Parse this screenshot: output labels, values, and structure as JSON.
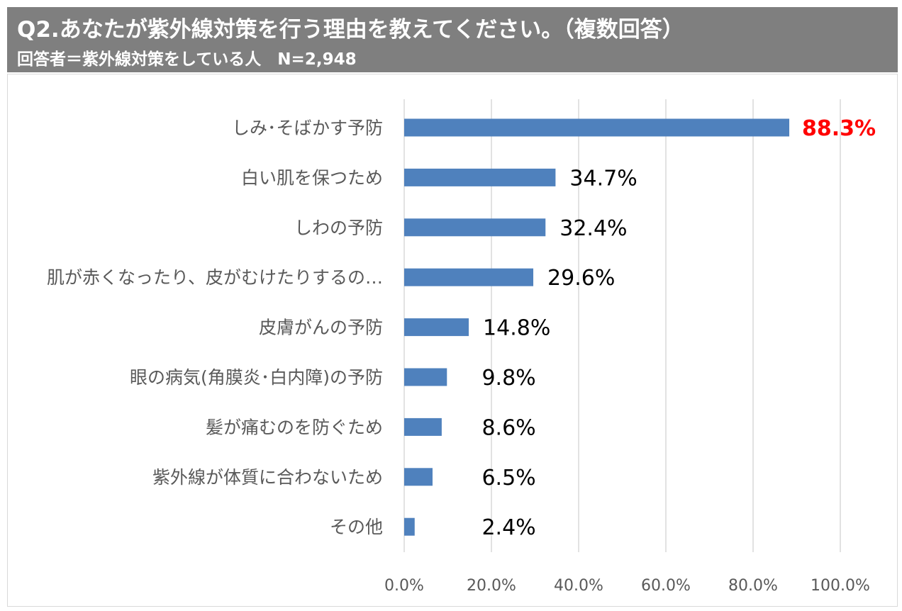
{
  "header": {
    "title": "Q2.あなたが紫外線対策を行う理由を教えてください。（複数回答）",
    "subtitle": "回答者＝紫外線対策をしている人　N=2,948"
  },
  "chart_data": {
    "type": "bar",
    "orientation": "horizontal",
    "categories": [
      "しみ･そばかす予防",
      "白い肌を保つため",
      "しわの予防",
      "肌が赤くなったり、皮がむけたりするの…",
      "皮膚がんの予防",
      "眼の病気(角膜炎･白内障)の予防",
      "髪が痛むのを防ぐため",
      "紫外線が体質に合わないため",
      "その他"
    ],
    "values": [
      88.3,
      34.7,
      32.4,
      29.6,
      14.8,
      9.8,
      8.6,
      6.5,
      2.4
    ],
    "data_labels": [
      "88.3%",
      "34.7%",
      "32.4%",
      "29.6%",
      "14.8%",
      "9.8%",
      "8.6%",
      "6.5%",
      "2.4%"
    ],
    "xlim": [
      0,
      100
    ],
    "x_ticks": [
      "0.0%",
      "20.0%",
      "40.0%",
      "60.0%",
      "80.0%",
      "100.0%"
    ],
    "grid": true,
    "bar_color": "#4f81bd",
    "highlight_label_color": "#ff0000",
    "highlight_index": 0,
    "gridline_color": "#d9d9d9",
    "axis_label_color": "#595959"
  }
}
